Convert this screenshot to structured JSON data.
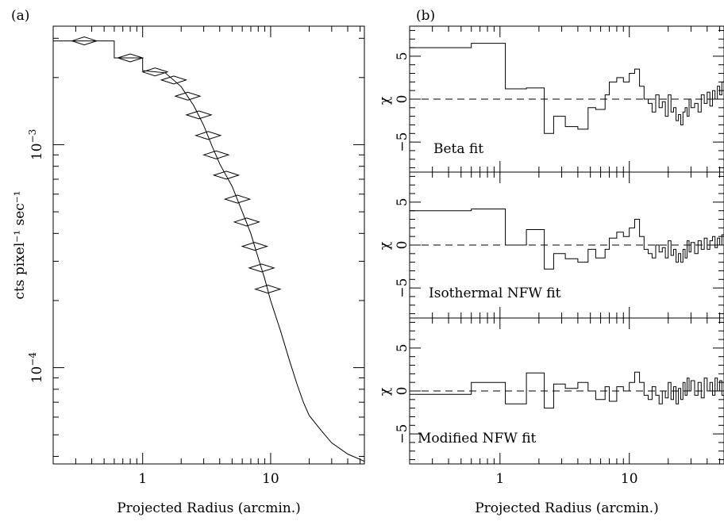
{
  "figure": {
    "panel_a_label": "(a)",
    "panel_b_label": "(b)"
  },
  "chart_data": [
    {
      "type": "line",
      "panel": "(a)",
      "xlabel": "Projected Radius (arcmin.)",
      "ylabel": "cts pixel⁻¹ sec⁻¹",
      "xscale": "log",
      "yscale": "log",
      "xlim": [
        0.2,
        54
      ],
      "ylim": [
        3.7e-05,
        0.0034
      ],
      "xticks": [
        {
          "v": 1,
          "label": "1"
        },
        {
          "v": 10,
          "label": "10"
        }
      ],
      "yticks": [
        {
          "v": 0.001,
          "base": "10",
          "exp": "−3"
        },
        {
          "v": 0.0001,
          "base": "10",
          "exp": "−4"
        }
      ],
      "series": [
        {
          "profile": [
            [
              0.2,
              0.00292
            ],
            [
              0.6,
              0.00292
            ],
            [
              0.6,
              0.00245
            ],
            [
              1.0,
              0.00245
            ],
            [
              1.0,
              0.00215
            ],
            [
              1.5,
              0.0021
            ],
            [
              2.0,
              0.00182
            ],
            [
              2.5,
              0.0015
            ],
            [
              3.0,
              0.00122
            ],
            [
              3.5,
              0.00098
            ],
            [
              4.0,
              0.00082
            ],
            [
              5.0,
              0.00065
            ],
            [
              6.0,
              0.0005
            ],
            [
              7.0,
              0.0004
            ],
            [
              8.0,
              0.00031
            ],
            [
              9.0,
              0.00025
            ],
            [
              10.0,
              0.0002
            ],
            [
              12.0,
              0.000145
            ],
            [
              14.0,
              0.000108
            ],
            [
              16.0,
              8.5e-05
            ],
            [
              18.0,
              7e-05
            ],
            [
              20.0,
              6.1e-05
            ],
            [
              25.0,
              5.2e-05
            ],
            [
              30.0,
              4.6e-05
            ],
            [
              40.0,
              4.1e-05
            ],
            [
              54.0,
              3.8e-05
            ]
          ]
        }
      ]
    },
    {
      "type": "line",
      "panel": "(b) top",
      "ylabel": "χ",
      "annotation": "Beta fit",
      "xscale": "log",
      "xlim": [
        0.2,
        54
      ],
      "ylim": [
        -8.5,
        8.5
      ],
      "yticks": [
        {
          "v": 5,
          "label": "5"
        },
        {
          "v": 0,
          "label": "0"
        },
        {
          "v": -5,
          "label": "−5"
        }
      ],
      "reference_line": 0,
      "series": [
        {
          "residuals": [
            [
              0.2,
              6.0
            ],
            [
              0.6,
              6.5
            ],
            [
              1.1,
              1.2
            ],
            [
              1.6,
              1.3
            ],
            [
              2.2,
              -4.0
            ],
            [
              2.6,
              -2.0
            ],
            [
              3.2,
              -3.2
            ],
            [
              4.0,
              -3.5
            ],
            [
              4.8,
              -1.0
            ],
            [
              5.5,
              -1.2
            ],
            [
              6.5,
              0.5
            ],
            [
              7.0,
              2.0
            ],
            [
              8.0,
              2.5
            ],
            [
              9.0,
              2.0
            ],
            [
              10.0,
              3.0
            ],
            [
              11.0,
              3.5
            ],
            [
              12.0,
              1.5
            ],
            [
              13.0,
              0.0
            ],
            [
              14.0,
              -0.5
            ],
            [
              15.0,
              -1.5
            ],
            [
              16.0,
              0.5
            ],
            [
              17.0,
              -1.0
            ],
            [
              18.0,
              -0.3
            ],
            [
              19.0,
              -2.0
            ],
            [
              20.0,
              0.5
            ],
            [
              21.0,
              -1.5
            ],
            [
              22.0,
              -1.0
            ],
            [
              23.0,
              -2.5
            ],
            [
              24.0,
              -1.8
            ],
            [
              25.0,
              -3.0
            ],
            [
              26.0,
              -1.5
            ],
            [
              27.0,
              -1.0
            ],
            [
              28.0,
              -2.0
            ],
            [
              29.0,
              0.0
            ],
            [
              30.0,
              -1.0
            ],
            [
              32.0,
              -0.5
            ],
            [
              34.0,
              -1.5
            ],
            [
              36.0,
              0.5
            ],
            [
              38.0,
              -0.5
            ],
            [
              40.0,
              0.8
            ],
            [
              42.0,
              -0.8
            ],
            [
              44.0,
              1.0
            ],
            [
              46.0,
              0.0
            ],
            [
              48.0,
              1.5
            ],
            [
              50.0,
              0.5
            ],
            [
              52.0,
              2.0
            ],
            [
              54.0,
              1.0
            ]
          ]
        }
      ]
    },
    {
      "type": "line",
      "panel": "(b) middle",
      "ylabel": "χ",
      "annotation": "Isothermal NFW fit",
      "xscale": "log",
      "xlim": [
        0.2,
        54
      ],
      "ylim": [
        -8.5,
        8.5
      ],
      "yticks": [
        {
          "v": 5,
          "label": "5"
        },
        {
          "v": 0,
          "label": "0"
        },
        {
          "v": -5,
          "label": "−5"
        }
      ],
      "reference_line": 0,
      "series": [
        {
          "residuals": [
            [
              0.2,
              4.0
            ],
            [
              0.6,
              4.2
            ],
            [
              1.1,
              0.0
            ],
            [
              1.6,
              1.8
            ],
            [
              2.2,
              -2.8
            ],
            [
              2.6,
              -1.0
            ],
            [
              3.2,
              -1.6
            ],
            [
              4.0,
              -2.0
            ],
            [
              4.8,
              -0.5
            ],
            [
              5.5,
              -1.5
            ],
            [
              6.5,
              -0.5
            ],
            [
              7.0,
              0.8
            ],
            [
              8.0,
              1.5
            ],
            [
              9.0,
              1.0
            ],
            [
              10.0,
              2.0
            ],
            [
              11.0,
              3.0
            ],
            [
              12.0,
              1.0
            ],
            [
              13.0,
              -0.5
            ],
            [
              14.0,
              -1.0
            ],
            [
              15.0,
              -1.5
            ],
            [
              16.0,
              0.0
            ],
            [
              17.0,
              -0.8
            ],
            [
              18.0,
              -0.3
            ],
            [
              19.0,
              -1.5
            ],
            [
              20.0,
              0.5
            ],
            [
              21.0,
              -1.2
            ],
            [
              22.0,
              -0.5
            ],
            [
              23.0,
              -2.0
            ],
            [
              24.0,
              -1.0
            ],
            [
              25.0,
              -2.0
            ],
            [
              26.0,
              -0.5
            ],
            [
              27.0,
              -1.5
            ],
            [
              28.0,
              0.5
            ],
            [
              29.0,
              -0.8
            ],
            [
              30.0,
              0.3
            ],
            [
              32.0,
              -1.0
            ],
            [
              34.0,
              0.5
            ],
            [
              36.0,
              -0.5
            ],
            [
              38.0,
              0.8
            ],
            [
              40.0,
              -0.5
            ],
            [
              42.0,
              0.5
            ],
            [
              44.0,
              1.0
            ],
            [
              46.0,
              -0.3
            ],
            [
              48.0,
              0.8
            ],
            [
              50.0,
              0.0
            ],
            [
              52.0,
              1.2
            ],
            [
              54.0,
              0.5
            ]
          ]
        }
      ]
    },
    {
      "type": "line",
      "panel": "(b) bottom",
      "xlabel": "Projected Radius (arcmin.)",
      "ylabel": "χ",
      "annotation": "Modified NFW fit",
      "xscale": "log",
      "xlim": [
        0.2,
        54
      ],
      "ylim": [
        -8.5,
        8.5
      ],
      "xticks": [
        {
          "v": 1,
          "label": "1"
        },
        {
          "v": 10,
          "label": "10"
        }
      ],
      "yticks": [
        {
          "v": 5,
          "label": "5"
        },
        {
          "v": 0,
          "label": "0"
        },
        {
          "v": -5,
          "label": "−5"
        }
      ],
      "reference_line": 0,
      "series": [
        {
          "residuals": [
            [
              0.2,
              -0.4
            ],
            [
              0.6,
              1.0
            ],
            [
              1.1,
              -1.5
            ],
            [
              1.6,
              2.1
            ],
            [
              2.2,
              -2.0
            ],
            [
              2.6,
              0.8
            ],
            [
              3.2,
              0.3
            ],
            [
              4.0,
              1.0
            ],
            [
              4.8,
              0.0
            ],
            [
              5.5,
              -1.0
            ],
            [
              6.5,
              0.5
            ],
            [
              7.0,
              -1.2
            ],
            [
              8.0,
              0.5
            ],
            [
              9.0,
              0.0
            ],
            [
              10.0,
              1.0
            ],
            [
              11.0,
              2.2
            ],
            [
              12.0,
              1.0
            ],
            [
              13.0,
              -0.5
            ],
            [
              14.0,
              -1.0
            ],
            [
              15.0,
              0.5
            ],
            [
              16.0,
              -0.5
            ],
            [
              17.0,
              -1.5
            ],
            [
              18.0,
              0.0
            ],
            [
              19.0,
              -0.8
            ],
            [
              20.0,
              1.0
            ],
            [
              21.0,
              -1.0
            ],
            [
              22.0,
              0.5
            ],
            [
              23.0,
              -1.5
            ],
            [
              24.0,
              0.3
            ],
            [
              25.0,
              -1.0
            ],
            [
              26.0,
              1.0
            ],
            [
              27.0,
              -0.5
            ],
            [
              28.0,
              1.5
            ],
            [
              29.0,
              0.0
            ],
            [
              30.0,
              1.2
            ],
            [
              32.0,
              -0.5
            ],
            [
              34.0,
              1.0
            ],
            [
              36.0,
              -0.8
            ],
            [
              38.0,
              1.5
            ],
            [
              40.0,
              0.0
            ],
            [
              42.0,
              1.0
            ],
            [
              44.0,
              -0.5
            ],
            [
              46.0,
              1.5
            ],
            [
              48.0,
              0.0
            ],
            [
              50.0,
              1.2
            ],
            [
              52.0,
              -0.5
            ],
            [
              54.0,
              0.8
            ]
          ]
        }
      ]
    }
  ]
}
